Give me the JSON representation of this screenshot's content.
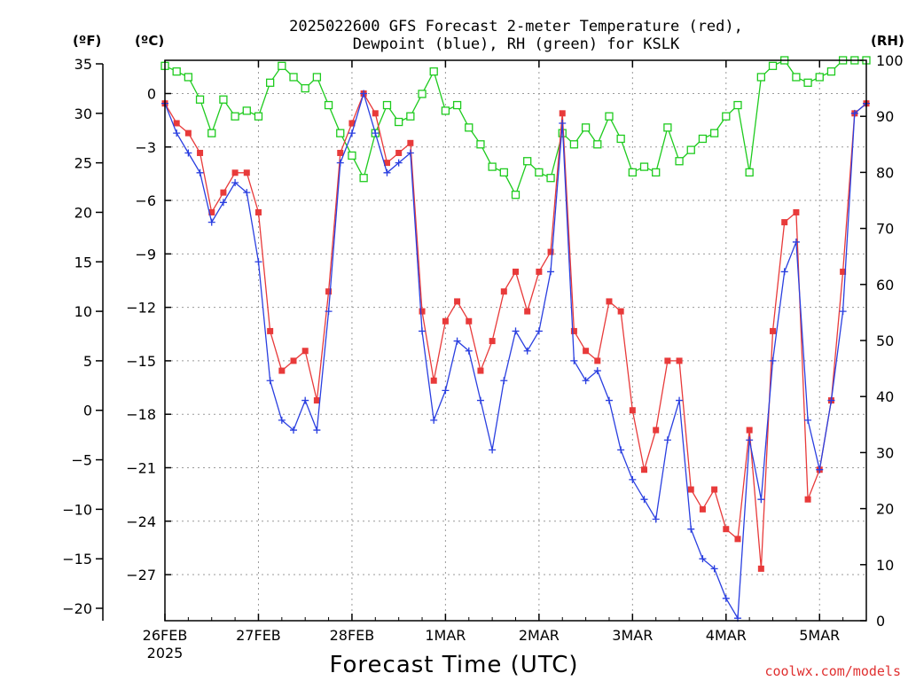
{
  "chart_data": {
    "type": "line",
    "title_line1": "2025022600 GFS Forecast 2-meter Temperature (red),",
    "title_line2": "Dewpoint (blue), RH (green) for KSLK",
    "left_unit_f": "(ºF)",
    "left_unit_c": "(ºC)",
    "right_unit": "(RH)",
    "xlabel": "Forecast Time (UTC)",
    "credit": "coolwx.com/models",
    "x_start": "26FEB",
    "x_start_year": "2025",
    "x_tick_labels": [
      "26FEB",
      "27FEB",
      "28FEB",
      "1MAR",
      "2MAR",
      "3MAR",
      "4MAR",
      "5MAR"
    ],
    "x_range_days": [
      0,
      7.5
    ],
    "f_axis": {
      "range": [
        -20,
        35
      ],
      "ticks": [
        "35",
        "30",
        "25",
        "20",
        "15",
        "10",
        "5",
        "0",
        "−5",
        "−10",
        "−15",
        "−20"
      ]
    },
    "c_axis": {
      "ticks": [
        "0",
        "−3",
        "−6",
        "−9",
        "−12",
        "−15",
        "−18",
        "−21",
        "−24",
        "−27"
      ]
    },
    "rh_axis": {
      "range": [
        0,
        100
      ],
      "ticks": [
        "100",
        "90",
        "80",
        "70",
        "60",
        "50",
        "40",
        "30",
        "20",
        "10",
        "0"
      ]
    },
    "grid": true,
    "colors": {
      "temperature": "#e83a3a",
      "dewpoint": "#2a3fe0",
      "rh": "#1ecb1e"
    },
    "series": [
      {
        "key": "temperature",
        "axis": "F",
        "marker": "square",
        "x_hours": [
          0,
          3,
          6,
          9,
          12,
          15,
          18,
          21,
          24,
          27,
          30,
          33,
          36,
          39,
          42,
          45,
          48,
          51,
          54,
          57,
          60,
          63,
          66,
          69,
          72,
          75,
          78,
          81,
          84,
          87,
          90,
          93,
          96,
          99,
          102,
          105,
          108,
          111,
          114,
          117,
          120,
          123,
          126,
          129,
          132,
          135,
          138,
          141,
          144,
          147,
          150,
          153,
          156,
          159,
          162,
          165,
          168,
          171,
          174,
          177,
          180
        ],
        "values": [
          31,
          29,
          28,
          26,
          20,
          22,
          24,
          24,
          20,
          8,
          4,
          5,
          6,
          1,
          12,
          26,
          29,
          32,
          30,
          25,
          26,
          27,
          10,
          3,
          9,
          11,
          9,
          4,
          7,
          12,
          14,
          10,
          14,
          16,
          30,
          8,
          6,
          5,
          11,
          10,
          0,
          -6,
          -2,
          5,
          5,
          -8,
          -10,
          -8,
          -12,
          -13,
          -2,
          -16,
          8,
          19,
          20,
          -9,
          -6,
          1,
          14,
          30,
          31
        ]
      },
      {
        "key": "dewpoint",
        "axis": "F",
        "marker": "plus",
        "x_hours": [
          0,
          3,
          6,
          9,
          12,
          15,
          18,
          21,
          24,
          27,
          30,
          33,
          36,
          39,
          42,
          45,
          48,
          51,
          54,
          57,
          60,
          63,
          66,
          69,
          72,
          75,
          78,
          81,
          84,
          87,
          90,
          93,
          96,
          99,
          102,
          105,
          108,
          111,
          114,
          117,
          120,
          123,
          126,
          129,
          132,
          135,
          138,
          141,
          144,
          147,
          150,
          153,
          156,
          159,
          162,
          165,
          168,
          171,
          174,
          177,
          180
        ],
        "values": [
          31,
          28,
          26,
          24,
          19,
          21,
          23,
          22,
          15,
          3,
          -1,
          -2,
          1,
          -2,
          10,
          25,
          28,
          32,
          28,
          24,
          25,
          26,
          8,
          -1,
          2,
          7,
          6,
          1,
          -4,
          3,
          8,
          6,
          8,
          14,
          29,
          5,
          3,
          4,
          1,
          -4,
          -7,
          -9,
          -11,
          -3,
          1,
          -12,
          -15,
          -16,
          -19,
          -21,
          -3,
          -9,
          5,
          14,
          17,
          -1,
          -6,
          1,
          10,
          30,
          31
        ]
      },
      {
        "key": "rh",
        "axis": "RH",
        "marker": "open-square",
        "x_hours": [
          0,
          3,
          6,
          9,
          12,
          15,
          18,
          21,
          24,
          27,
          30,
          33,
          36,
          39,
          42,
          45,
          48,
          51,
          54,
          57,
          60,
          63,
          66,
          69,
          72,
          75,
          78,
          81,
          84,
          87,
          90,
          93,
          96,
          99,
          102,
          105,
          108,
          111,
          114,
          117,
          120,
          123,
          126,
          129,
          132,
          135,
          138,
          141,
          144,
          147,
          150,
          153,
          156,
          159,
          162,
          165,
          168,
          171,
          174,
          177,
          180
        ],
        "values": [
          99,
          98,
          97,
          93,
          87,
          93,
          90,
          91,
          90,
          96,
          99,
          97,
          95,
          97,
          92,
          87,
          83,
          79,
          87,
          92,
          89,
          90,
          94,
          98,
          91,
          92,
          88,
          85,
          81,
          80,
          76,
          82,
          80,
          79,
          87,
          85,
          88,
          85,
          90,
          86,
          80,
          81,
          80,
          88,
          82,
          84,
          86,
          87,
          90,
          92,
          80,
          97,
          99,
          100,
          97,
          96,
          97,
          98,
          100,
          100,
          100
        ]
      }
    ]
  }
}
